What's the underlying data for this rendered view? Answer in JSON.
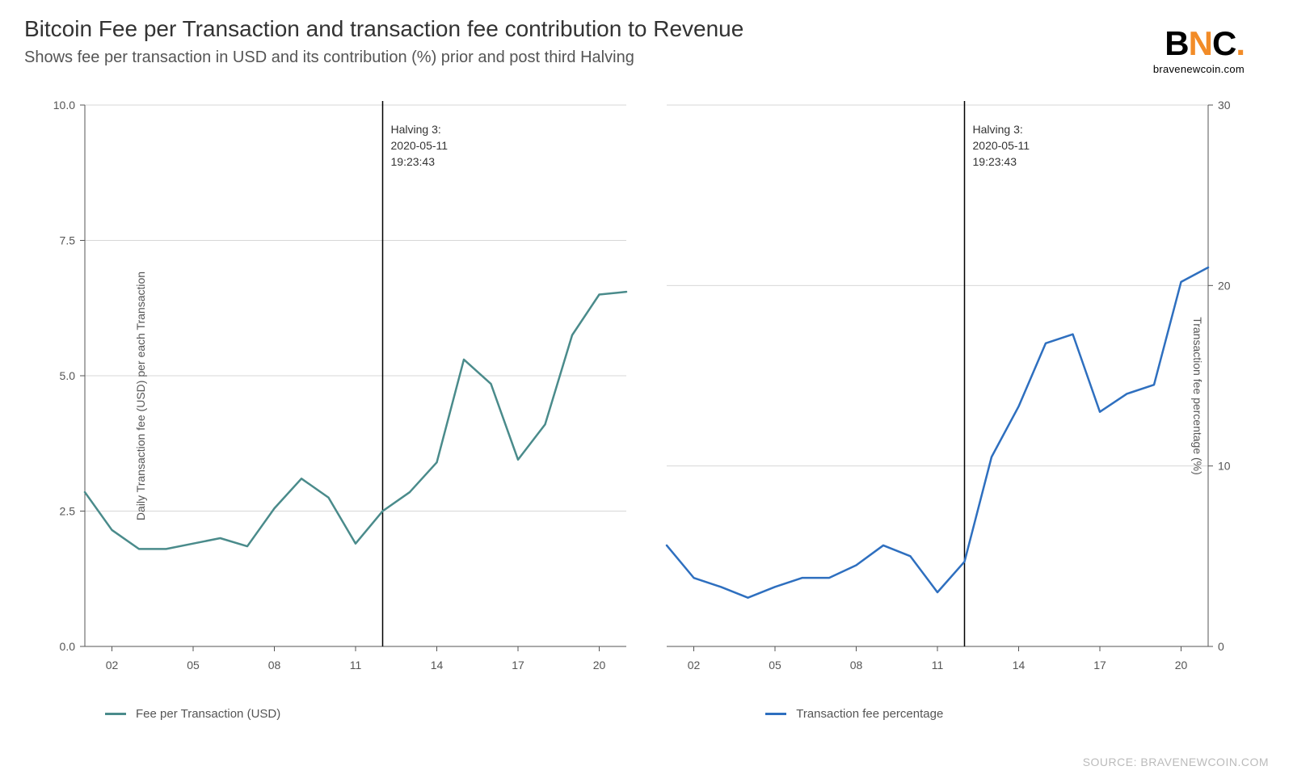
{
  "title": "Bitcoin Fee per Transaction and transaction fee contribution to Revenue",
  "subtitle": "Shows fee per transaction in USD and its contribution (%) prior and post third Halving",
  "logo": {
    "text_b": "B",
    "text_n": "N",
    "text_c": "C",
    "dot": ".",
    "subtext": "bravenewcoin.com",
    "orange_color": "#f28c28"
  },
  "source": "SOURCE: BRAVENEWCOIN.COM",
  "halving_label": {
    "line1": "Halving 3:",
    "line2": "2020-05-11",
    "line3": "19:23:43"
  },
  "x_days": [
    1,
    2,
    3,
    4,
    5,
    6,
    7,
    8,
    9,
    10,
    11,
    12,
    13,
    14,
    15,
    16,
    17,
    18,
    19,
    20,
    21
  ],
  "x_tick_days": [
    2,
    5,
    8,
    11,
    14,
    17,
    20
  ],
  "x_tick_labels": [
    "02",
    "05",
    "08",
    "11",
    "14",
    "17",
    "20"
  ],
  "halving_x": 12,
  "left_chart": {
    "type": "line",
    "series_name": "Fee per Transaction (USD)",
    "color": "#4a8b8b",
    "line_width": 2.5,
    "y_axis_label": "Daily Transaction fee (USD) per each Transaction",
    "y_axis_side": "left",
    "ylim": [
      0,
      10
    ],
    "y_ticks": [
      0.0,
      2.5,
      5.0,
      7.5,
      10.0
    ],
    "y_tick_labels": [
      "0.0",
      "2.5",
      "5.0",
      "7.5",
      "10.0"
    ],
    "grid_color": "#d7d7d7",
    "values": [
      2.85,
      2.15,
      1.8,
      1.8,
      1.9,
      2.0,
      1.85,
      2.55,
      3.1,
      2.75,
      1.9,
      2.5,
      2.85,
      3.4,
      5.3,
      4.85,
      3.45,
      4.1,
      5.75,
      6.5,
      6.55
    ]
  },
  "right_chart": {
    "type": "line",
    "series_name": "Transaction fee percentage",
    "color": "#2e6fbf",
    "line_width": 2.5,
    "y_axis_label": "Transaction fee percentage (%)",
    "y_axis_side": "right",
    "ylim": [
      0,
      30
    ],
    "y_ticks": [
      0,
      10,
      20,
      30
    ],
    "y_tick_labels": [
      "0",
      "10",
      "20",
      "30"
    ],
    "grid_color": "#d7d7d7",
    "values": [
      5.6,
      3.8,
      3.3,
      2.7,
      3.3,
      3.8,
      3.8,
      4.5,
      5.6,
      5.0,
      3.0,
      4.7,
      10.5,
      13.3,
      16.8,
      17.3,
      13.0,
      14.0,
      14.5,
      20.2,
      21.0
    ]
  },
  "background_color": "#ffffff",
  "axis_color": "#555555",
  "title_fontsize": 28,
  "subtitle_fontsize": 20,
  "tick_fontsize": 14
}
